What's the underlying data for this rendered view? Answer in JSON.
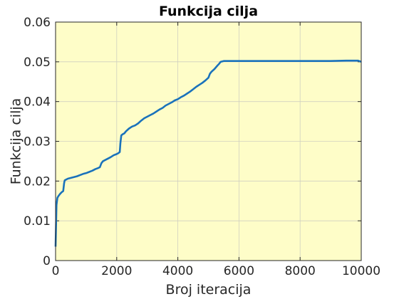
{
  "chart_data": {
    "type": "line",
    "title": "Funkcija cilja",
    "xlabel": "Broj iteracija",
    "ylabel": "Funkcija cilja",
    "xlim": [
      0,
      10000
    ],
    "ylim": [
      0,
      0.06
    ],
    "xticks": [
      0,
      2000,
      4000,
      6000,
      8000,
      10000
    ],
    "xtick_labels": [
      "0",
      "2000",
      "4000",
      "6000",
      "8000",
      "10000"
    ],
    "yticks": [
      0,
      0.01,
      0.02,
      0.03,
      0.04,
      0.05,
      0.06
    ],
    "ytick_labels": [
      "0",
      "0.01",
      "0.02",
      "0.03",
      "0.04",
      "0.05",
      "0.06"
    ],
    "grid": true,
    "legend": "none",
    "colors": {
      "plot_background": "#fefdc8",
      "line": "#1a72bb",
      "grid": "#d0d0c0",
      "axis": "#262626"
    },
    "series": [
      {
        "x": [
          0,
          30,
          60,
          100,
          150,
          200,
          250,
          280,
          300,
          350,
          400,
          500,
          600,
          700,
          800,
          900,
          1000,
          1100,
          1200,
          1300,
          1400,
          1450,
          1500,
          1550,
          1600,
          1700,
          1800,
          1900,
          2000,
          2050,
          2100,
          2120,
          2150,
          2200,
          2250,
          2300,
          2400,
          2500,
          2600,
          2700,
          2800,
          2900,
          3000,
          3100,
          3200,
          3300,
          3400,
          3500,
          3600,
          3700,
          3800,
          3900,
          4000,
          4100,
          4200,
          4300,
          4400,
          4500,
          4600,
          4700,
          4800,
          4900,
          5000,
          5050,
          5100,
          5200,
          5300,
          5350,
          5400,
          5500,
          6000,
          7000,
          8000,
          9000,
          9500,
          9800,
          9900,
          10000
        ],
        "y": [
          0.0035,
          0.014,
          0.0158,
          0.0163,
          0.0168,
          0.0172,
          0.0175,
          0.0195,
          0.0202,
          0.0204,
          0.0206,
          0.0208,
          0.021,
          0.0212,
          0.0215,
          0.0218,
          0.022,
          0.0223,
          0.0226,
          0.023,
          0.0233,
          0.0235,
          0.0245,
          0.025,
          0.0252,
          0.0256,
          0.026,
          0.0265,
          0.0268,
          0.027,
          0.0273,
          0.0295,
          0.0315,
          0.0318,
          0.032,
          0.0325,
          0.0332,
          0.0337,
          0.034,
          0.0345,
          0.0352,
          0.0358,
          0.0362,
          0.0366,
          0.037,
          0.0375,
          0.038,
          0.0384,
          0.039,
          0.0394,
          0.0398,
          0.0403,
          0.0406,
          0.0411,
          0.0415,
          0.042,
          0.0425,
          0.0431,
          0.0437,
          0.0442,
          0.0447,
          0.0453,
          0.046,
          0.047,
          0.0475,
          0.0482,
          0.0491,
          0.0495,
          0.05,
          0.0502,
          0.0502,
          0.0502,
          0.0502,
          0.0502,
          0.0503,
          0.0503,
          0.0503,
          0.05
        ]
      }
    ]
  }
}
